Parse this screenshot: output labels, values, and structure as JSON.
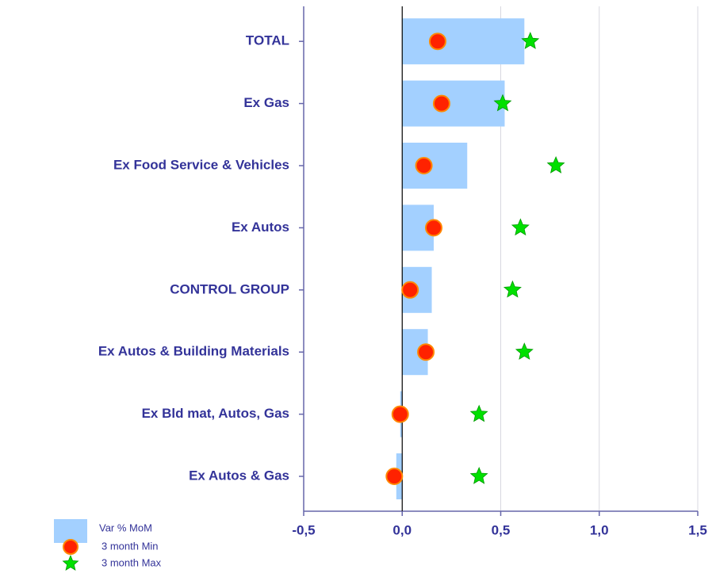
{
  "chart_data": {
    "type": "bar",
    "orientation": "horizontal",
    "categories": [
      "TOTAL",
      "Ex Gas",
      "Ex Food Service & Vehicles",
      "Ex Autos",
      "CONTROL GROUP",
      "Ex Autos & Building Materials",
      "Ex Bld mat, Autos, Gas",
      "Ex Autos & Gas"
    ],
    "series": [
      {
        "name": "Var % MoM",
        "color": "#a3d0ff",
        "marker": "bar",
        "values": [
          0.62,
          0.52,
          0.33,
          0.16,
          0.15,
          0.13,
          -0.01,
          -0.03
        ]
      },
      {
        "name": "3 month Min",
        "color": "#ff2200",
        "marker": "circle",
        "values": [
          0.18,
          0.2,
          0.11,
          0.16,
          0.04,
          0.12,
          -0.01,
          -0.04
        ]
      },
      {
        "name": "3 month Max",
        "color": "#00e000",
        "marker": "star",
        "values": [
          0.65,
          0.51,
          0.78,
          0.6,
          0.56,
          0.62,
          0.39,
          0.39
        ]
      }
    ],
    "xlim": [
      -0.5,
      1.5
    ],
    "xticks": [
      {
        "value": -0.5,
        "label": "-0,5"
      },
      {
        "value": 0,
        "label": "0,0"
      },
      {
        "value": 0.5,
        "label": "0,5"
      },
      {
        "value": 1,
        "label": "1,0"
      },
      {
        "value": 1.5,
        "label": "1,5"
      }
    ],
    "grid": true,
    "legend": "bottom-left"
  }
}
